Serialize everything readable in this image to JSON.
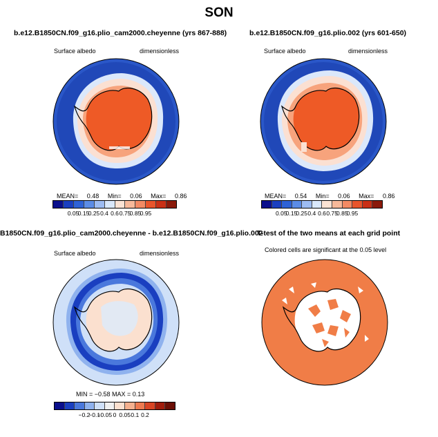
{
  "title": "SON",
  "colors": {
    "ocean_blue": "#2a57c8",
    "deep_blue": "#1a3aa8",
    "ice_orange": "#ee5a26",
    "light_orange": "#f7a37c",
    "significant_orange": "#f07d47"
  },
  "panels": {
    "tl": {
      "title": "b.e12.B1850CN.f09_g16.plio_cam2000.cheyenne (yrs 867-888)",
      "left": "Surface albedo",
      "right": "dimensionless",
      "stats": {
        "mean_label": "MEAN=",
        "mean": "0.48",
        "min_label": "Min=",
        "min": "0.06",
        "max_label": "Max=",
        "max": "0.86"
      }
    },
    "tr": {
      "title": "b.e12.B1850CN.f09_g16.plio.002 (yrs 601-650)",
      "left": "Surface albedo",
      "right": "dimensionless",
      "stats": {
        "mean_label": "MEAN=",
        "mean": "0.54",
        "min_label": "Min=",
        "min": "0.06",
        "max_label": "Max=",
        "max": "0.86"
      }
    },
    "bl": {
      "title": "B1850CN.f09_g16.plio_cam2000.cheyenne - b.e12.B1850CN.f09_g16.plio.002",
      "left": "Surface albedo",
      "right": "dimensionless",
      "stats_text": "MIN = −0.58  MAX =    0.13"
    },
    "br": {
      "title": "T-test of the two means at each grid point",
      "subtitle": "Colored cells are significant at the 0.05 level"
    }
  },
  "chart_data": [
    {
      "type": "heatmap",
      "panel": "top-left",
      "title": "b.e12.B1850CN.f09_g16.plio_cam2000.cheyenne (yrs 867-888)",
      "variable": "Surface albedo",
      "units": "dimensionless",
      "projection": "polar stereographic (south pole)",
      "mean": 0.48,
      "min": 0.06,
      "max": 0.86,
      "colorbar_levels": [
        "0.05",
        "0.15",
        "0.25",
        "0.4",
        "0.6",
        "0.75",
        "0.85",
        "0.95"
      ],
      "colorbar_colors": [
        "#0a0f8c",
        "#1a3fc0",
        "#2e62d6",
        "#5b8ce6",
        "#9dbcf2",
        "#d9e8fb",
        "#fbe3d4",
        "#f7b99a",
        "#f28a64",
        "#e8552c",
        "#c93016",
        "#8a1a0b"
      ]
    },
    {
      "type": "heatmap",
      "panel": "top-right",
      "title": "b.e12.B1850CN.f09_g16.plio.002 (yrs 601-650)",
      "variable": "Surface albedo",
      "units": "dimensionless",
      "projection": "polar stereographic (south pole)",
      "mean": 0.54,
      "min": 0.06,
      "max": 0.86,
      "colorbar_levels": [
        "0.05",
        "0.15",
        "0.25",
        "0.4",
        "0.6",
        "0.75",
        "0.85",
        "0.95"
      ]
    },
    {
      "type": "heatmap",
      "panel": "bottom-left",
      "title": "B1850CN.f09_g16.plio_cam2000.cheyenne - b.e12.B1850CN.f09_g16.plio.002",
      "variable": "Surface albedo",
      "units": "dimensionless",
      "min": -0.58,
      "max": 0.13,
      "colorbar_levels": [
        "−0.2",
        "−0.1",
        "−0.05",
        "0",
        "0.05",
        "0.1",
        "0.2"
      ],
      "colorbar_colors": [
        "#0a0f8c",
        "#1a3fc0",
        "#4a78dc",
        "#8fb2ee",
        "#cfe0f8",
        "#f0f0f0",
        "#fbe0cf",
        "#f5b08e",
        "#ee7a50",
        "#d94524",
        "#a01c0c",
        "#6b0e05"
      ]
    },
    {
      "type": "heatmap",
      "panel": "bottom-right",
      "title": "T-test of the two means at each grid point",
      "note": "Colored cells are significant at the 0.05 level"
    }
  ]
}
